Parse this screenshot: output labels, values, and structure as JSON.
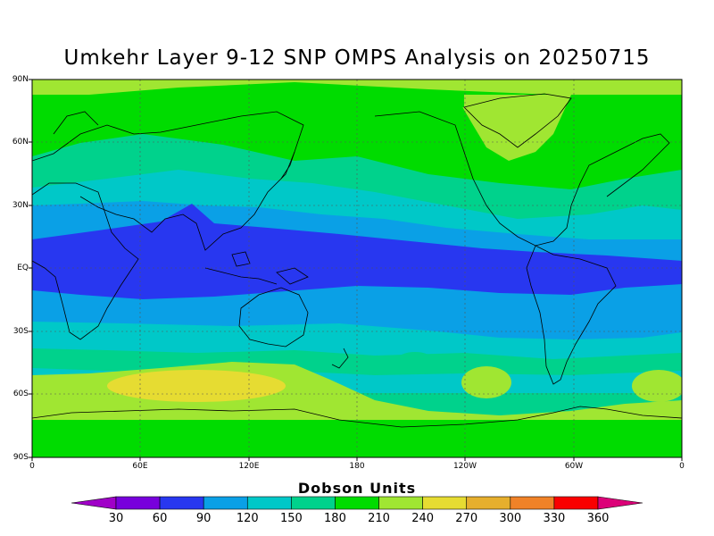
{
  "title": "Umkehr Layer 9-12 SNP OMPS Analysis on 20250715",
  "lat_labels": [
    "90N",
    "60N",
    "30N",
    "EQ",
    "30S",
    "60S",
    "90S"
  ],
  "lon_labels": [
    "0",
    "60E",
    "120E",
    "180",
    "120W",
    "60W",
    "0"
  ],
  "colorbar": {
    "title": "Dobson Units",
    "ticks": [
      "30",
      "60",
      "90",
      "120",
      "150",
      "180",
      "210",
      "240",
      "270",
      "300",
      "330",
      "360"
    ],
    "colors": [
      "#a000c8",
      "#7800dc",
      "#2837f0",
      "#0aa0e6",
      "#00c8c8",
      "#00d28c",
      "#00dc00",
      "#a0e632",
      "#e6dc32",
      "#e6af2d",
      "#f08228",
      "#fa0000",
      "#dc0078"
    ]
  },
  "field_colors": {
    "c60": "#2837f0",
    "c90": "#0aa0e6",
    "c120": "#00c8c8",
    "c150": "#00d28c",
    "c180": "#00dc00",
    "c210": "#a0e632",
    "c240": "#e6dc32"
  }
}
